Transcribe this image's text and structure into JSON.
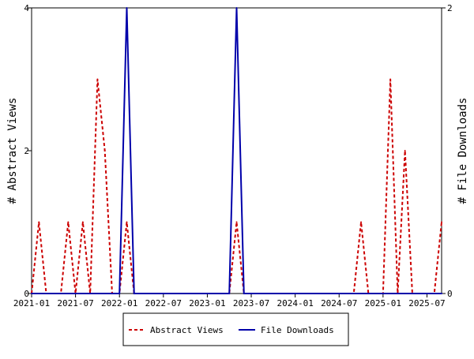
{
  "chart_data": {
    "type": "line",
    "x_ticks": [
      "2021-01",
      "2021-07",
      "2022-01",
      "2022-07",
      "2023-01",
      "2023-07",
      "2024-01",
      "2024-07",
      "2025-01",
      "2025-07"
    ],
    "x": [
      "2021-01",
      "2021-02",
      "2021-03",
      "2021-04",
      "2021-05",
      "2021-06",
      "2021-07",
      "2021-08",
      "2021-09",
      "2021-10",
      "2021-11",
      "2021-12",
      "2022-01",
      "2022-02",
      "2022-03",
      "2022-04",
      "2022-05",
      "2022-06",
      "2022-07",
      "2022-08",
      "2022-09",
      "2022-10",
      "2022-11",
      "2022-12",
      "2023-01",
      "2023-02",
      "2023-03",
      "2023-04",
      "2023-05",
      "2023-06",
      "2023-07",
      "2023-08",
      "2023-09",
      "2023-10",
      "2023-11",
      "2023-12",
      "2024-01",
      "2024-02",
      "2024-03",
      "2024-04",
      "2024-05",
      "2024-06",
      "2024-07",
      "2024-08",
      "2024-09",
      "2024-10",
      "2024-11",
      "2024-12",
      "2025-01",
      "2025-02",
      "2025-03",
      "2025-04",
      "2025-05",
      "2025-06",
      "2025-07",
      "2025-08",
      "2025-09"
    ],
    "series": [
      {
        "name": "Abstract Views",
        "axis": "left",
        "color": "#cc0000",
        "style": "dashed",
        "values": [
          0,
          1,
          0,
          0,
          0,
          1,
          0,
          1,
          0,
          3,
          2,
          0,
          0,
          1,
          0,
          0,
          0,
          0,
          0,
          0,
          0,
          0,
          0,
          0,
          0,
          0,
          0,
          0,
          1,
          0,
          0,
          0,
          0,
          0,
          0,
          0,
          0,
          0,
          0,
          0,
          0,
          0,
          0,
          0,
          0,
          1,
          0,
          0,
          0,
          3,
          0,
          2,
          0,
          0,
          0,
          0,
          1
        ]
      },
      {
        "name": "File Downloads",
        "axis": "right",
        "color": "#0000aa",
        "style": "solid",
        "values": [
          0,
          0,
          0,
          0,
          0,
          0,
          0,
          0,
          0,
          0,
          0,
          0,
          0,
          2,
          0,
          0,
          0,
          0,
          0,
          0,
          0,
          0,
          0,
          0,
          0,
          0,
          0,
          0,
          2,
          0,
          0,
          0,
          0,
          0,
          0,
          0,
          0,
          0,
          0,
          0,
          0,
          0,
          0,
          0,
          0,
          0,
          0,
          0,
          0,
          0,
          0,
          0,
          0,
          0,
          0,
          0,
          0
        ]
      }
    ],
    "y_left": {
      "label": "# Abstract Views",
      "ylim": [
        0,
        4
      ],
      "ticks": [
        0,
        2,
        4
      ]
    },
    "y_right": {
      "label": "# File Downloads",
      "ylim": [
        0,
        2
      ],
      "ticks": [
        0,
        2
      ]
    },
    "legend_position": "bottom-center",
    "grid": false
  }
}
